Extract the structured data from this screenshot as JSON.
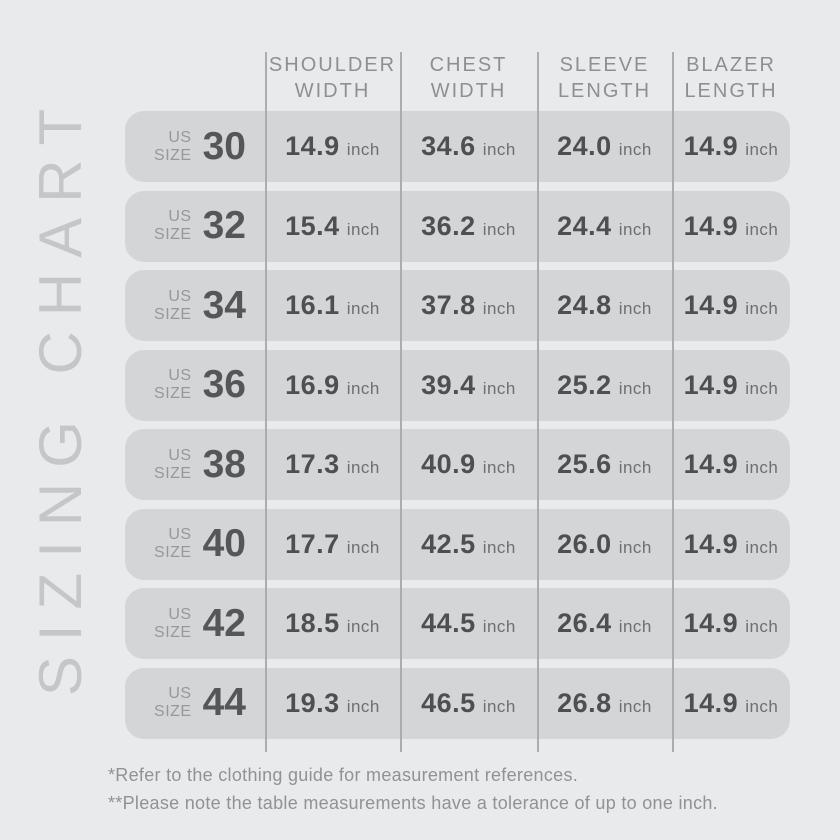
{
  "page": {
    "vertical_title": "SIZING CHART",
    "background_color": "#e9eaec",
    "row_pill_color": "#d4d5d7",
    "separator_line_color": "#aaacae",
    "dark_text_color": "#4e4f53",
    "muted_text_color": "#8f9296"
  },
  "table": {
    "size_label_line1": "US",
    "size_label_line2": "SIZE",
    "unit_label": "inch",
    "headers": [
      {
        "line1": "SHOULDER",
        "line2": "WIDTH"
      },
      {
        "line1": "CHEST",
        "line2": "WIDTH"
      },
      {
        "line1": "SLEEVE",
        "line2": "LENGTH"
      },
      {
        "line1": "BLAZER",
        "line2": "LENGTH"
      }
    ]
  },
  "chart_data": {
    "type": "table",
    "title": "SIZING CHART",
    "columns": [
      "US SIZE",
      "SHOULDER WIDTH (inch)",
      "CHEST WIDTH (inch)",
      "SLEEVE LENGTH (inch)",
      "BLAZER LENGTH (inch)"
    ],
    "unit": "inch",
    "rows": [
      [
        "30",
        "14.9",
        "34.6",
        "24.0",
        "14.9"
      ],
      [
        "32",
        "15.4",
        "36.2",
        "24.4",
        "14.9"
      ],
      [
        "34",
        "16.1",
        "37.8",
        "24.8",
        "14.9"
      ],
      [
        "36",
        "16.9",
        "39.4",
        "25.2",
        "14.9"
      ],
      [
        "38",
        "17.3",
        "40.9",
        "25.6",
        "14.9"
      ],
      [
        "40",
        "17.7",
        "42.5",
        "26.0",
        "14.9"
      ],
      [
        "42",
        "18.5",
        "44.5",
        "26.4",
        "14.9"
      ],
      [
        "44",
        "19.3",
        "46.5",
        "26.8",
        "14.9"
      ]
    ]
  },
  "footnotes": [
    "*Refer to the clothing guide for measurement references.",
    "**Please note the table measurements have a tolerance of up to one inch."
  ]
}
